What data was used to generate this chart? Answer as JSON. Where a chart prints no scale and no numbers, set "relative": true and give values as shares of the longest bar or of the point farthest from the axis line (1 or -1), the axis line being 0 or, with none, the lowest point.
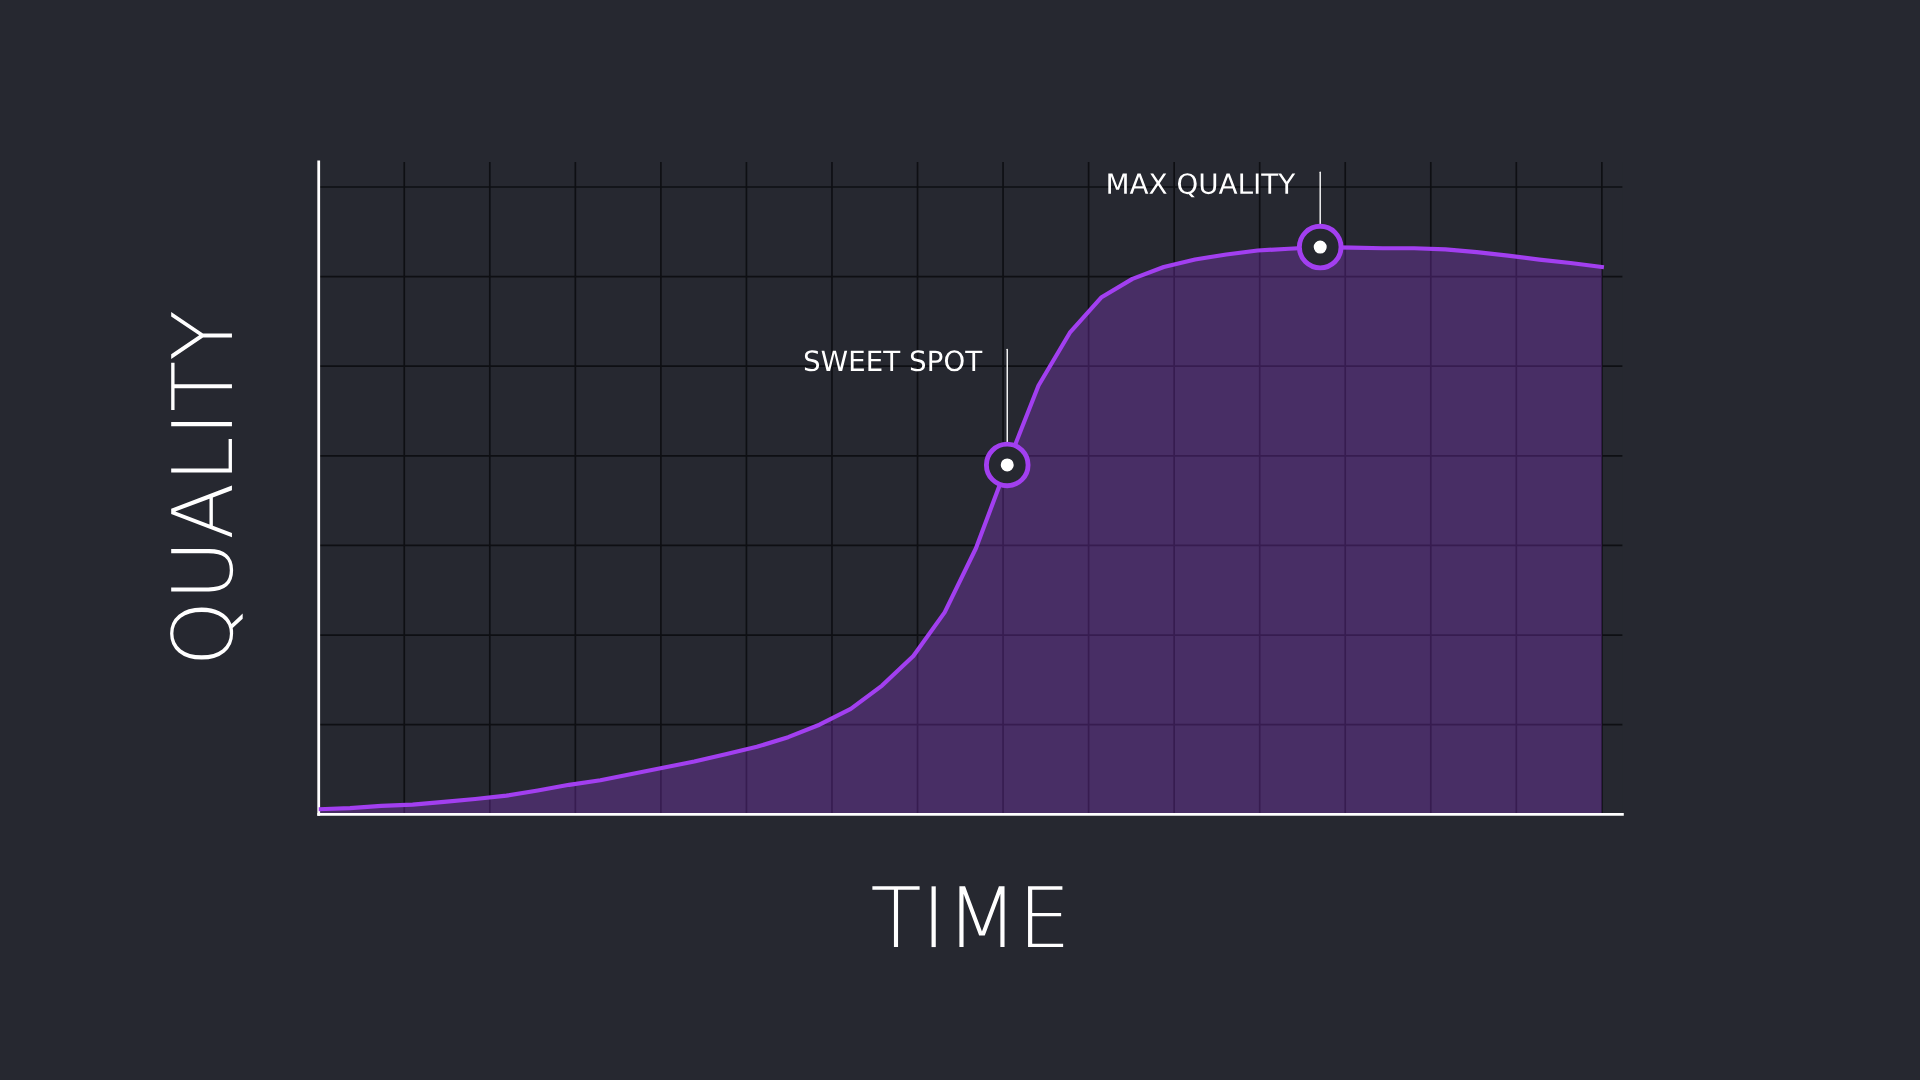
{
  "chart_data": {
    "type": "area",
    "relative": true,
    "xlabel": "TIME",
    "ylabel": "QUALITY",
    "grid": true,
    "legend": false,
    "categories": [
      null,
      null,
      null,
      null,
      null,
      null,
      null,
      null,
      null,
      null,
      null,
      null,
      null,
      null,
      null,
      null,
      null,
      null,
      null,
      null,
      null,
      null,
      null,
      null,
      null,
      null,
      null,
      null,
      null,
      null,
      null,
      null,
      null,
      null,
      null,
      null,
      null,
      null,
      null,
      null,
      null,
      null
    ],
    "series": [
      {
        "color": "#a23ff0",
        "values": [
          0.009,
          0.011,
          0.015,
          0.017,
          0.022,
          0.027,
          0.033,
          0.042,
          0.052,
          0.06,
          0.071,
          0.082,
          0.093,
          0.106,
          0.119,
          0.136,
          0.158,
          0.186,
          0.227,
          0.279,
          0.356,
          0.469,
          0.616,
          0.756,
          0.849,
          0.911,
          0.944,
          0.965,
          0.978,
          0.987,
          0.994,
          0.997,
          1,
          0.999,
          0.998,
          0.998,
          0.996,
          0.991,
          0.985,
          0.978,
          0.972,
          0.965
        ]
      }
    ],
    "annotations": [
      "SWEET SPOT",
      "MAX QUALITY"
    ]
  }
}
